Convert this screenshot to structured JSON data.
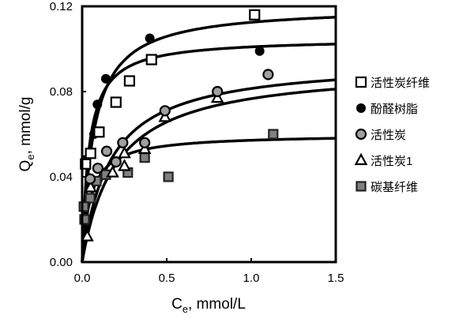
{
  "chart_data": {
    "type": "scatter",
    "title": "",
    "xlabel": {
      "main": "C",
      "sub": "e",
      "rest": ", mmol/L"
    },
    "ylabel": {
      "main": "Q",
      "sub": "e",
      "rest": ", mmol/g"
    },
    "xlim": [
      0,
      1.5
    ],
    "ylim": [
      0,
      0.12
    ],
    "xticks": [
      "0.0",
      "0.5",
      "1.0",
      "1.5"
    ],
    "xtick_values": [
      0,
      0.5,
      1.0,
      1.5
    ],
    "yticks": [
      "0.00",
      "0.04",
      "0.08",
      "0.12"
    ],
    "ytick_values": [
      0,
      0.04,
      0.08,
      0.12
    ],
    "grid": false,
    "legend_position": "right",
    "series": [
      {
        "name": "活性炭纤维",
        "marker": "open-square",
        "points": [
          [
            1.02,
            0.116
          ],
          [
            0.41,
            0.095
          ],
          [
            0.28,
            0.085
          ],
          [
            0.2,
            0.075
          ],
          [
            0.1,
            0.061
          ],
          [
            0.05,
            0.051
          ],
          [
            0.02,
            0.046
          ]
        ],
        "fit": {
          "model": "Langmuir",
          "qm": 0.105,
          "k": 25
        }
      },
      {
        "name": "酚醛树脂",
        "marker": "black-circle",
        "points": [
          [
            0.4,
            0.105
          ],
          [
            1.05,
            0.099
          ],
          [
            0.14,
            0.086
          ],
          [
            0.09,
            0.074
          ],
          [
            0.07,
            0.06
          ],
          [
            0.02,
            0.048
          ]
        ],
        "fit": {
          "model": "Langmuir",
          "qm": 0.12,
          "k": 15
        }
      },
      {
        "name": "活性炭",
        "marker": "gray-circle",
        "points": [
          [
            1.1,
            0.088
          ],
          [
            0.8,
            0.08
          ],
          [
            0.49,
            0.071
          ],
          [
            0.37,
            0.056
          ],
          [
            0.24,
            0.056
          ],
          [
            0.2,
            0.047
          ],
          [
            0.145,
            0.052
          ],
          [
            0.093,
            0.044
          ],
          [
            0.047,
            0.039
          ]
        ],
        "fit": {
          "model": "Langmuir",
          "qm": 0.095,
          "k": 6
        }
      },
      {
        "name": "活性炭1",
        "marker": "open-triangle",
        "points": [
          [
            0.8,
            0.077
          ],
          [
            0.49,
            0.068
          ],
          [
            0.37,
            0.053
          ],
          [
            0.25,
            0.051
          ],
          [
            0.25,
            0.045
          ],
          [
            0.18,
            0.042
          ],
          [
            0.05,
            0.035
          ],
          [
            0.03,
            0.012
          ]
        ],
        "fit": {
          "model": "Langmuir",
          "qm": 0.092,
          "k": 5
        }
      },
      {
        "name": "碳基纤维",
        "marker": "gray-square",
        "points": [
          [
            1.13,
            0.06
          ],
          [
            0.51,
            0.04
          ],
          [
            0.37,
            0.049
          ],
          [
            0.27,
            0.042
          ],
          [
            0.14,
            0.041
          ],
          [
            0.084,
            0.038
          ],
          [
            0.047,
            0.03
          ],
          [
            0.01,
            0.026
          ],
          [
            0.014,
            0.02
          ]
        ],
        "fit": {
          "model": "Langmuir",
          "qm": 0.06,
          "k": 20
        }
      }
    ]
  }
}
